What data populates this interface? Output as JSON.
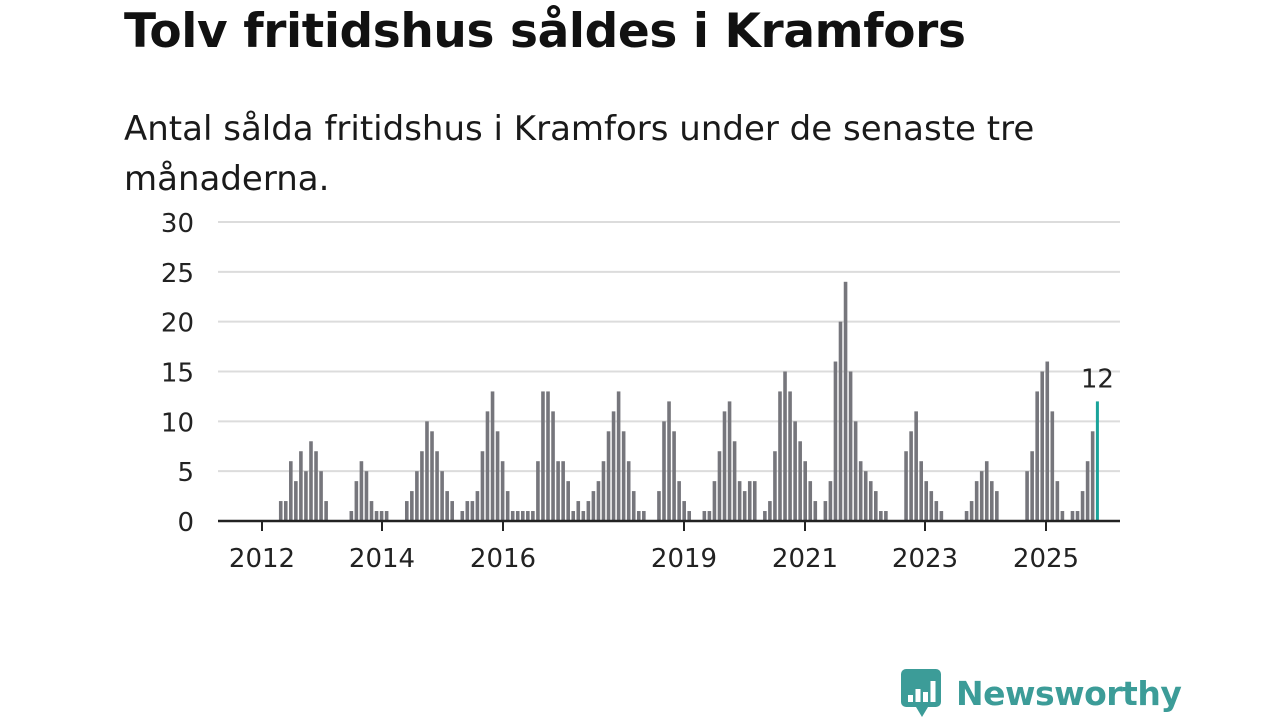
{
  "headline": "Tolv fritidshus såldes i Kramfors",
  "subtitle": "Antal sålda fritidshus i Kramfors under de senaste tre månaderna.",
  "brand": {
    "name": "Newsworthy",
    "color": "#3c9c98"
  },
  "colors": {
    "bar": "#76767c",
    "highlight": "#1aa39a",
    "grid": "#dcdcdc",
    "axis": "#222222",
    "text": "#222222"
  },
  "chart_data": {
    "type": "bar",
    "ylim": [
      0,
      30
    ],
    "yticks": [
      0,
      5,
      10,
      15,
      20,
      25,
      30
    ],
    "xticks": [
      "2012",
      "2014",
      "2016",
      "2019",
      "2021",
      "2023",
      "2025"
    ],
    "grid": true,
    "highlight_label": "12",
    "values": [
      0,
      0,
      0,
      0,
      0,
      0,
      0,
      0,
      0,
      0,
      2,
      2,
      6,
      4,
      7,
      5,
      8,
      7,
      5,
      2,
      0,
      0,
      0,
      0,
      1,
      4,
      6,
      5,
      2,
      1,
      1,
      1,
      0,
      0,
      0,
      2,
      3,
      5,
      7,
      10,
      9,
      7,
      5,
      3,
      2,
      0,
      1,
      2,
      2,
      3,
      7,
      11,
      13,
      9,
      6,
      3,
      1,
      1,
      1,
      1,
      1,
      6,
      13,
      13,
      11,
      6,
      6,
      4,
      1,
      2,
      1,
      2,
      3,
      4,
      6,
      9,
      11,
      13,
      9,
      6,
      3,
      1,
      1,
      0,
      0,
      3,
      10,
      12,
      9,
      4,
      2,
      1,
      0,
      0,
      1,
      1,
      4,
      7,
      11,
      12,
      8,
      4,
      3,
      4,
      4,
      0,
      1,
      2,
      7,
      13,
      15,
      13,
      10,
      8,
      6,
      4,
      2,
      0,
      2,
      4,
      16,
      20,
      24,
      15,
      10,
      6,
      5,
      4,
      3,
      1,
      1,
      0,
      0,
      0,
      7,
      9,
      11,
      6,
      4,
      3,
      2,
      1,
      0,
      0,
      0,
      0,
      1,
      2,
      4,
      5,
      6,
      4,
      3,
      0,
      0,
      0,
      0,
      0,
      5,
      7,
      13,
      15,
      16,
      11,
      4,
      1,
      0,
      1,
      1,
      3,
      6,
      9,
      12
    ]
  }
}
